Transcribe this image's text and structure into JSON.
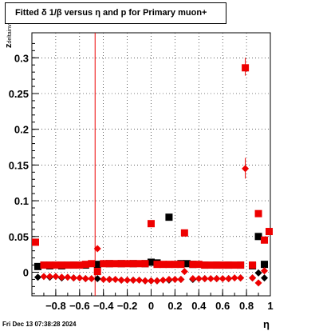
{
  "title": "Fitted δ 1/β versus η and p for Primary muon+",
  "footer": "Fri Dec 13 07:38:28 2024",
  "chart_data": {
    "type": "scatter",
    "title": "Fitted δ 1/β versus η and p for Primary muon+",
    "xlabel": "η",
    "ylabel": "z_{deltainv}",
    "xlim": [
      -1.0,
      1.0
    ],
    "ylim": [
      -0.033,
      0.335
    ],
    "x_ticks": [
      "−0.8",
      "−0.6",
      "−0.4",
      "−0.2",
      "0",
      "0.2",
      "0.4",
      "0.6",
      "0.8",
      "1"
    ],
    "x_tick_values": [
      -0.8,
      -0.6,
      -0.4,
      -0.2,
      0,
      0.2,
      0.4,
      0.6,
      0.8,
      1.0
    ],
    "y_ticks": [
      "0",
      "0.05",
      "0.1",
      "0.15",
      "0.2",
      "0.25",
      "0.3"
    ],
    "y_tick_values": [
      0,
      0.05,
      0.1,
      0.15,
      0.2,
      0.25,
      0.3
    ],
    "grid": true,
    "vertical_line_x": -0.47,
    "series": [
      {
        "marker": "square",
        "color": "#000000",
        "points": [
          [
            -0.95,
            0.008
          ],
          [
            -0.85,
            0.009
          ],
          [
            -0.75,
            0.009
          ],
          [
            -0.65,
            0.01
          ],
          [
            -0.55,
            0.01
          ],
          [
            -0.45,
            0.011
          ],
          [
            -0.35,
            0.012
          ],
          [
            -0.25,
            0.012
          ],
          [
            -0.15,
            0.012
          ],
          [
            -0.05,
            0.012
          ],
          [
            0.0,
            0.014
          ],
          [
            0.05,
            0.013
          ],
          [
            0.15,
            0.077
          ],
          [
            0.25,
            0.012
          ],
          [
            0.3,
            0.012
          ],
          [
            0.35,
            0.011
          ],
          [
            0.45,
            0.01
          ],
          [
            0.55,
            0.01
          ],
          [
            0.65,
            0.01
          ],
          [
            0.75,
            0.01
          ],
          [
            0.85,
            0.009
          ],
          [
            0.9,
            0.05
          ],
          [
            0.95,
            0.011
          ]
        ]
      },
      {
        "marker": "square",
        "color": "#ee0000",
        "points": [
          [
            -0.97,
            0.042
          ],
          [
            -0.9,
            0.01
          ],
          [
            -0.85,
            0.01
          ],
          [
            -0.8,
            0.01
          ],
          [
            -0.75,
            0.01
          ],
          [
            -0.7,
            0.01
          ],
          [
            -0.65,
            0.01
          ],
          [
            -0.6,
            0.01
          ],
          [
            -0.55,
            0.011
          ],
          [
            -0.5,
            0.012
          ],
          [
            -0.45,
            0.001
          ],
          [
            -0.4,
            0.012
          ],
          [
            -0.35,
            0.012
          ],
          [
            -0.3,
            0.012
          ],
          [
            -0.25,
            0.012
          ],
          [
            -0.2,
            0.012
          ],
          [
            -0.15,
            0.012
          ],
          [
            -0.1,
            0.012
          ],
          [
            -0.05,
            0.012
          ],
          [
            0.0,
            0.068
          ],
          [
            0.05,
            0.011
          ],
          [
            0.1,
            0.011
          ],
          [
            0.15,
            0.011
          ],
          [
            0.2,
            0.011
          ],
          [
            0.25,
            0.011
          ],
          [
            0.28,
            0.055
          ],
          [
            0.35,
            0.011
          ],
          [
            0.4,
            0.011
          ],
          [
            0.45,
            0.01
          ],
          [
            0.5,
            0.01
          ],
          [
            0.55,
            0.01
          ],
          [
            0.6,
            0.01
          ],
          [
            0.65,
            0.01
          ],
          [
            0.7,
            0.01
          ],
          [
            0.75,
            0.01
          ],
          [
            0.79,
            0.286
          ],
          [
            0.85,
            0.01
          ],
          [
            0.9,
            0.082
          ],
          [
            0.95,
            0.045
          ],
          [
            0.99,
            0.057
          ]
        ]
      },
      {
        "marker": "diamond",
        "color": "#000000",
        "points": [
          [
            -0.95,
            -0.007
          ],
          [
            -0.85,
            -0.007
          ],
          [
            -0.75,
            -0.008
          ],
          [
            -0.65,
            -0.008
          ],
          [
            -0.55,
            -0.009
          ],
          [
            -0.45,
            -0.009
          ],
          [
            -0.35,
            -0.01
          ],
          [
            -0.25,
            -0.011
          ],
          [
            -0.15,
            -0.011
          ],
          [
            -0.05,
            -0.012
          ],
          [
            0.0,
            -0.012
          ],
          [
            0.05,
            -0.012
          ],
          [
            0.15,
            -0.011
          ],
          [
            0.25,
            -0.01
          ],
          [
            0.35,
            -0.01
          ],
          [
            0.45,
            -0.009
          ],
          [
            0.55,
            -0.009
          ],
          [
            0.65,
            -0.009
          ],
          [
            0.75,
            -0.008
          ],
          [
            0.85,
            -0.008
          ],
          [
            0.9,
            -0.001
          ],
          [
            0.95,
            -0.008
          ]
        ]
      },
      {
        "marker": "diamond",
        "color": "#ee0000",
        "points": [
          [
            -0.9,
            -0.006
          ],
          [
            -0.85,
            -0.006
          ],
          [
            -0.8,
            -0.006
          ],
          [
            -0.75,
            -0.007
          ],
          [
            -0.7,
            -0.007
          ],
          [
            -0.65,
            -0.008
          ],
          [
            -0.6,
            -0.008
          ],
          [
            -0.55,
            -0.009
          ],
          [
            -0.5,
            -0.009
          ],
          [
            -0.45,
            0.033
          ],
          [
            -0.4,
            -0.01
          ],
          [
            -0.35,
            -0.01
          ],
          [
            -0.3,
            -0.01
          ],
          [
            -0.25,
            -0.011
          ],
          [
            -0.2,
            -0.011
          ],
          [
            -0.15,
            -0.011
          ],
          [
            -0.1,
            -0.011
          ],
          [
            -0.05,
            -0.012
          ],
          [
            0.0,
            -0.012
          ],
          [
            0.05,
            -0.012
          ],
          [
            0.1,
            -0.011
          ],
          [
            0.15,
            -0.01
          ],
          [
            0.2,
            -0.01
          ],
          [
            0.25,
            -0.01
          ],
          [
            0.28,
            0.001
          ],
          [
            0.35,
            -0.009
          ],
          [
            0.4,
            -0.009
          ],
          [
            0.45,
            -0.009
          ],
          [
            0.5,
            -0.009
          ],
          [
            0.55,
            -0.009
          ],
          [
            0.6,
            -0.009
          ],
          [
            0.65,
            -0.009
          ],
          [
            0.7,
            -0.008
          ],
          [
            0.75,
            -0.008
          ],
          [
            0.79,
            0.145
          ],
          [
            0.85,
            -0.008
          ],
          [
            0.9,
            -0.015
          ],
          [
            0.95,
            0.002
          ]
        ]
      }
    ],
    "error_bars": [
      {
        "x": 0.79,
        "y_low": 0.275,
        "y_high": 0.3
      },
      {
        "x": 0.79,
        "y_low": 0.131,
        "y_high": 0.16
      }
    ]
  }
}
